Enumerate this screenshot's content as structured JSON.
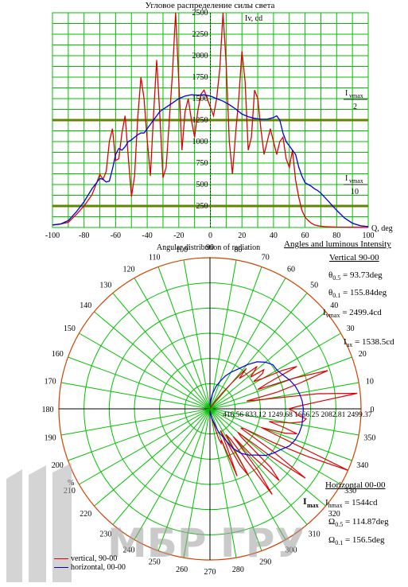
{
  "chart_data": [
    {
      "type": "line",
      "title": "Угловое распределение силы света",
      "ylabel": "Iv, cd",
      "xlabel": "Q, deg",
      "xlim": [
        -100,
        100
      ],
      "ylim": [
        0,
        2500
      ],
      "x_ticks": [
        "-100",
        "-80",
        "-60",
        "-40",
        "-20",
        "0",
        "20",
        "40",
        "60",
        "80",
        "100"
      ],
      "y_ticks": [
        "250",
        "500",
        "750",
        "1000",
        "1250",
        "1500",
        "1750",
        "2000",
        "2250",
        "2500"
      ],
      "ref_lines": [
        {
          "value": 1250,
          "label_main": "I",
          "label_sub": "vmax",
          "label_div": "2"
        },
        {
          "value": 250,
          "label_main": "I",
          "label_sub": "vmax",
          "label_div": "10"
        }
      ],
      "grid": true,
      "series": [
        {
          "name": "vertical, 90-00",
          "color": "#e00000",
          "x": [
            -100,
            -95,
            -90,
            -85,
            -80,
            -75,
            -72,
            -70,
            -68,
            -66,
            -64,
            -62,
            -60,
            -58,
            -56,
            -54,
            -52,
            -50,
            -48,
            -46,
            -44,
            -42,
            -40,
            -38,
            -36,
            -34,
            -32,
            -30,
            -28,
            -26,
            -24,
            -22,
            -20,
            -18,
            -16,
            -14,
            -12,
            -10,
            -8,
            -6,
            -4,
            -2,
            0,
            2,
            4,
            6,
            8,
            10,
            12,
            14,
            16,
            18,
            20,
            22,
            24,
            26,
            28,
            30,
            32,
            34,
            36,
            38,
            40,
            42,
            44,
            46,
            48,
            50,
            52,
            54,
            56,
            58,
            60,
            62,
            64,
            66,
            68,
            70,
            72,
            75,
            80,
            85,
            90,
            95,
            100
          ],
          "y": [
            30,
            40,
            60,
            150,
            250,
            380,
            520,
            620,
            560,
            650,
            1000,
            1150,
            780,
            800,
            1100,
            1300,
            820,
            360,
            600,
            1280,
            1750,
            1500,
            1020,
            600,
            1300,
            1950,
            1300,
            580,
            700,
            1250,
            1800,
            2500,
            1700,
            900,
            1350,
            1500,
            1250,
            1050,
            1350,
            1550,
            1600,
            1500,
            1400,
            1300,
            1500,
            1850,
            2500,
            1900,
            1000,
            620,
            1100,
            1500,
            2050,
            1700,
            900,
            1050,
            1600,
            1500,
            1150,
            850,
            1000,
            1150,
            1000,
            850,
            1000,
            1050,
            800,
            700,
            900,
            550,
            350,
            200,
            120,
            80,
            50,
            30,
            20,
            15,
            10,
            8,
            5,
            4,
            3,
            2,
            1
          ]
        },
        {
          "name": "horizontal, 00-00",
          "color": "#0000e0",
          "x": [
            -100,
            -95,
            -90,
            -85,
            -80,
            -75,
            -70,
            -68,
            -66,
            -64,
            -62,
            -60,
            -58,
            -56,
            -54,
            -52,
            -50,
            -48,
            -46,
            -44,
            -42,
            -40,
            -36,
            -32,
            -28,
            -24,
            -20,
            -16,
            -12,
            -8,
            -4,
            0,
            4,
            8,
            12,
            16,
            20,
            24,
            28,
            32,
            36,
            40,
            42,
            44,
            46,
            48,
            50,
            52,
            54,
            56,
            58,
            60,
            62,
            64,
            66,
            68,
            70,
            75,
            80,
            85,
            90,
            95,
            100
          ],
          "y": [
            30,
            40,
            80,
            180,
            300,
            450,
            570,
            560,
            530,
            540,
            680,
            850,
            920,
            900,
            940,
            1000,
            1020,
            1050,
            1080,
            1100,
            1100,
            1150,
            1250,
            1350,
            1400,
            1450,
            1500,
            1530,
            1545,
            1540,
            1544,
            1530,
            1500,
            1470,
            1430,
            1380,
            1320,
            1290,
            1270,
            1260,
            1260,
            1280,
            1300,
            1250,
            1100,
            1000,
            950,
            900,
            850,
            700,
            600,
            520,
            500,
            480,
            450,
            430,
            400,
            300,
            200,
            110,
            50,
            20,
            10
          ]
        }
      ]
    },
    {
      "type": "scatter",
      "subtype": "polar",
      "title": "Angular distribution of radiation",
      "section_title": "Angles and luminous Intensity",
      "angle_ticks": [
        "0",
        "10",
        "20",
        "30",
        "40",
        "50",
        "60",
        "70",
        "80",
        "90",
        "100",
        "110",
        "120",
        "130",
        "140",
        "150",
        "160",
        "170",
        "180",
        "190",
        "200",
        "210",
        "220",
        "230",
        "240",
        "250",
        "260",
        "270",
        "280",
        "290",
        "300",
        "310",
        "320",
        "330",
        "340",
        "350"
      ],
      "radial_ticks": [
        "416.56",
        "833.12",
        "1249.68",
        "1666.25",
        "2082.81",
        "2499.37"
      ],
      "radial_ticks_display": "416.56 833.12 1249.68 1666.25 2082.81 2499.37",
      "rmax": 2499.37,
      "rmax_label_main": "I",
      "rmax_label_sub": "max",
      "percent_label": "%",
      "series": [
        {
          "name": "vertical, 90-00",
          "color": "#e00000",
          "theta": [
            270,
            275,
            280,
            282,
            284,
            286,
            288,
            290,
            292,
            294,
            296,
            298,
            300,
            302,
            304,
            306,
            308,
            310,
            312,
            314,
            316,
            318,
            320,
            322,
            324,
            326,
            328,
            330,
            332,
            334,
            336,
            338,
            340,
            342,
            344,
            346,
            348,
            350,
            352,
            354,
            356,
            358,
            0,
            2,
            4,
            6,
            8,
            10,
            12,
            14,
            16,
            18,
            20,
            22,
            24,
            26,
            28,
            30,
            32,
            34,
            36,
            38,
            40,
            42,
            44,
            46,
            48,
            50,
            52,
            54,
            56,
            58,
            60,
            62,
            64,
            66,
            68,
            70,
            72,
            74,
            76,
            78,
            80,
            85,
            90
          ],
          "r": [
            30,
            40,
            100,
            200,
            250,
            500,
            600,
            550,
            1200,
            700,
            400,
            1050,
            1280,
            500,
            600,
            1750,
            1300,
            600,
            1050,
            1650,
            1400,
            700,
            600,
            1300,
            1950,
            1250,
            600,
            650,
            1200,
            1800,
            2500,
            1300,
            900,
            1300,
            1500,
            1250,
            1000,
            1350,
            1550,
            1600,
            1450,
            1400,
            1300,
            1500,
            1850,
            2450,
            1800,
            900,
            620,
            1150,
            1550,
            2050,
            1500,
            850,
            1050,
            1600,
            1350,
            1000,
            850,
            1050,
            1100,
            850,
            950,
            1050,
            800,
            700,
            900,
            550,
            350,
            200,
            120,
            80,
            50,
            30,
            20,
            15,
            10,
            8,
            5,
            4,
            3,
            2,
            1,
            1,
            1
          ]
        },
        {
          "name": "horizontal, 00-00",
          "color": "#0000e0",
          "theta": [
            270,
            280,
            290,
            300,
            305,
            310,
            315,
            320,
            325,
            330,
            335,
            340,
            345,
            350,
            355,
            0,
            5,
            10,
            15,
            20,
            25,
            30,
            35,
            40,
            45,
            50,
            55,
            60,
            65,
            70,
            75,
            80,
            85,
            90
          ],
          "r": [
            30,
            150,
            400,
            750,
            900,
            1000,
            1080,
            1200,
            1280,
            1350,
            1450,
            1500,
            1530,
            1545,
            1540,
            1544,
            1530,
            1500,
            1460,
            1400,
            1330,
            1280,
            1270,
            1200,
            1100,
            950,
            800,
            700,
            600,
            480,
            380,
            260,
            150,
            60
          ]
        }
      ]
    }
  ],
  "params": {
    "header": "Vertical 90-00",
    "theta05": {
      "symbol": "θ",
      "sub": "0.5",
      "value": "= 93.73deg"
    },
    "theta01": {
      "symbol": "θ",
      "sub": "0.1",
      "value": "= 155.84deg"
    },
    "ivmax": {
      "symbol": "I",
      "sub": "vmax",
      "value": "= 2499.4cd"
    },
    "iax": {
      "symbol": "I",
      "sub": "ax",
      "value": "= 1538.5cd"
    },
    "h_header": "Horizontal 00-00",
    "ihmax": {
      "symbol": "I",
      "sub": "hmax",
      "value": "= 1544cd"
    },
    "omega05": {
      "symbol": "Ω",
      "sub": "0.5",
      "value": "= 114.87deg"
    },
    "omega01": {
      "symbol": "Ω",
      "sub": "0.1",
      "value": "= 156.5deg"
    }
  },
  "legend": [
    {
      "label": "vertical, 90-00",
      "color": "#e00000"
    },
    {
      "label": "horizontal, 00-00",
      "color": "#0000e0"
    }
  ],
  "watermark": {
    "text": "МБР ГРУПП"
  },
  "colors": {
    "grid": "#00c000",
    "outer": "#d04000",
    "ref": "#a06000",
    "axis": "#000000"
  }
}
